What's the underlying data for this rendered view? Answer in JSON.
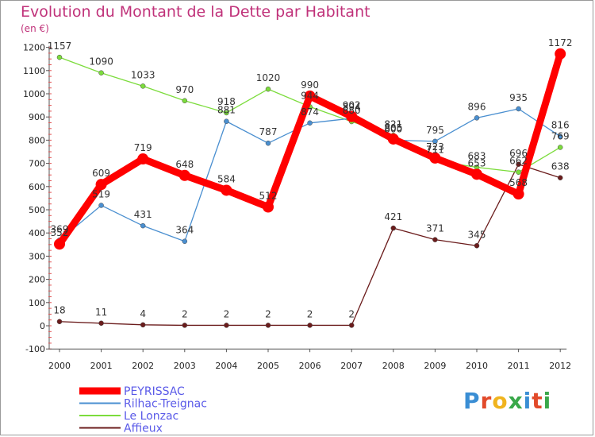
{
  "title": "Evolution du Montant de la Dette par Habitant",
  "subtitle": "(en €)",
  "brand": {
    "text": "Proxiti",
    "colors": [
      "#3a8ed4",
      "#e24a2a",
      "#f0b41e",
      "#3aa84a",
      "#3a8ed4",
      "#e24a2a",
      "#3aa84a"
    ]
  },
  "chart_data": {
    "type": "line",
    "x": [
      "2000",
      "2001",
      "2002",
      "2003",
      "2004",
      "2005",
      "2006",
      "2007",
      "2008",
      "2009",
      "2010",
      "2011",
      "2012"
    ],
    "ylim": [
      -100,
      1200
    ],
    "yticks": [
      -100,
      0,
      100,
      200,
      300,
      400,
      500,
      600,
      700,
      800,
      900,
      1000,
      1100,
      1200
    ],
    "grid": false,
    "legend": "bottom-left",
    "series": [
      {
        "name": "PEYRISSAC",
        "color": "#ff0000",
        "values": [
          352,
          609,
          719,
          648,
          584,
          512,
          990,
          902,
          805,
          723,
          653,
          568,
          1172
        ]
      },
      {
        "name": "Rilhac-Treignac",
        "color": "#4a8fd0",
        "values": [
          369,
          519,
          431,
          364,
          881,
          787,
          874,
          894,
          800,
          795,
          896,
          935,
          816
        ]
      },
      {
        "name": "Le Lonzac",
        "color": "#7cdc3c",
        "values": [
          1157,
          1090,
          1033,
          970,
          918,
          1020,
          944,
          880,
          821,
          711,
          683,
          662,
          769
        ]
      },
      {
        "name": "Affieux",
        "color": "#6b1c1c",
        "values": [
          18,
          11,
          4,
          2,
          2,
          2,
          2,
          2,
          421,
          371,
          345,
          696,
          638
        ]
      }
    ]
  }
}
